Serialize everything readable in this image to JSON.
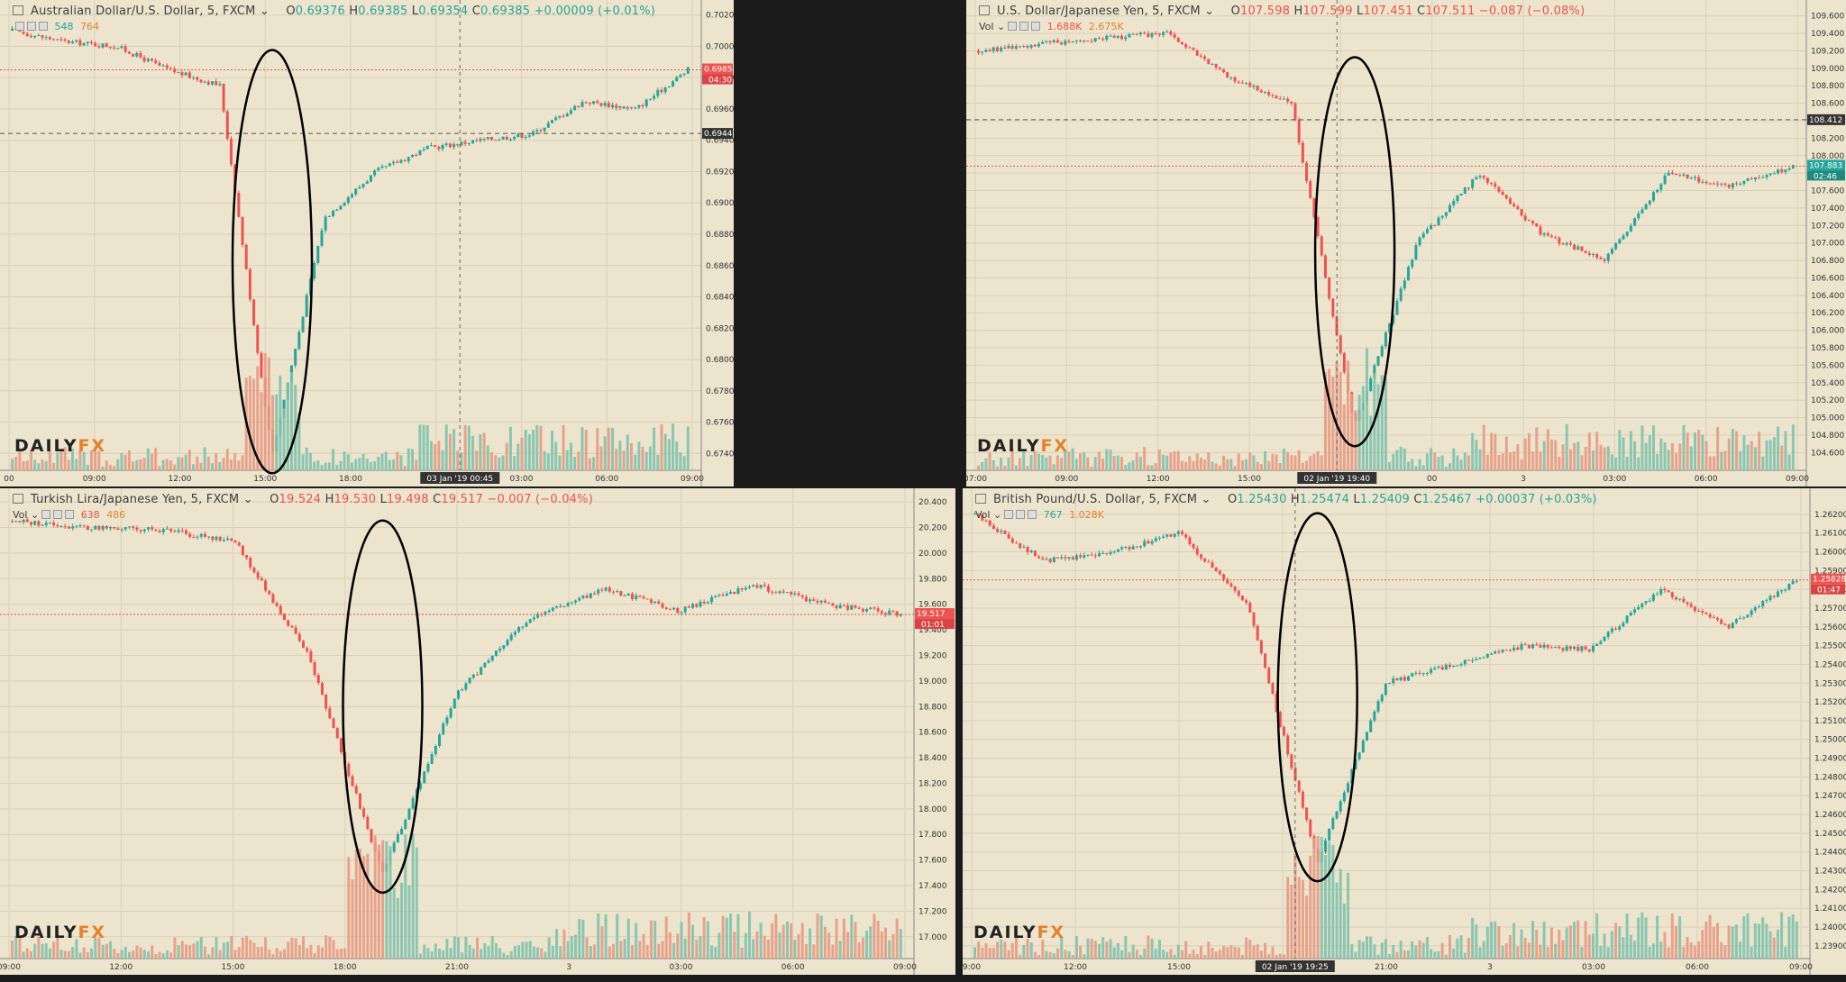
{
  "colors": {
    "up": "#26a69a",
    "down": "#ef5350",
    "vol_up": "#7fc2ae",
    "vol_down": "#e89a84",
    "bg": "#ece4cc",
    "grid": "#d8d0b8",
    "ellipse": "#000000"
  },
  "logo": {
    "main": "DAILY",
    "accent": "FX"
  },
  "panels": [
    {
      "header": {
        "title": "Australian Dollar/U.S. Dollar, 5, FXCM",
        "o_label": "O",
        "o": "0.69376",
        "h_label": "H",
        "h": "0.69385",
        "l_label": "L",
        "l": "0.69354",
        "c_label": "C",
        "c": "0.69385",
        "change": "+0.00009 (+0.01%)",
        "change_color": "#26a69a"
      },
      "vol": {
        "label": "",
        "v1": "548",
        "v2": "764"
      },
      "y_ticks": [
        "0.70200",
        "0.70000",
        "0.69800",
        "0.69600",
        "0.69400",
        "0.69200",
        "0.69000",
        "0.68800",
        "0.68600",
        "0.68400",
        "0.68200",
        "0.68000",
        "0.67800",
        "0.67600",
        "0.67400"
      ],
      "x_ticks": [
        "00",
        "09:00",
        "12:00",
        "15:00",
        "18:00",
        "21:00",
        "03:00",
        "06:00",
        "09:00"
      ],
      "price_badge": {
        "value": "0.69858",
        "time": "04:30"
      },
      "cross_badge": {
        "value": "0.69444"
      },
      "x_cursor_label": "03 Jan '19    00:45"
    },
    {
      "header": {
        "title": "U.S. Dollar/Japanese Yen, 5, FXCM",
        "o_label": "O",
        "o": "107.598",
        "h_label": "H",
        "h": "107.599",
        "l_label": "L",
        "l": "107.451",
        "c_label": "C",
        "c": "107.511",
        "change": "−0.087 (−0.08%)",
        "change_color": "#ef5350"
      },
      "vol": {
        "label": "Vol",
        "v1": "1.688K",
        "v2": "2.675K"
      },
      "y_ticks": [
        "109.600",
        "109.400",
        "109.200",
        "109.000",
        "108.800",
        "108.600",
        "108.400",
        "108.200",
        "108.000",
        "107.800",
        "107.600",
        "107.400",
        "107.200",
        "107.000",
        "106.800",
        "106.600",
        "106.400",
        "106.200",
        "106.000",
        "105.800",
        "105.600",
        "105.400",
        "105.200",
        "105.000",
        "104.800",
        "104.600"
      ],
      "x_ticks": [
        "07:00",
        "09:00",
        "12:00",
        "15:00",
        "18:00",
        "00",
        "3",
        "03:00",
        "06:00",
        "09:00"
      ],
      "price_badge": {
        "value": "107.883",
        "time": "02:46"
      },
      "cross_badge": {
        "value": "108.412"
      },
      "x_cursor_label": "02 Jan '19    19:40"
    },
    {
      "header": {
        "title": "Turkish Lira/Japanese Yen, 5, FXCM",
        "o_label": "O",
        "o": "19.524",
        "h_label": "H",
        "h": "19.530",
        "l_label": "L",
        "l": "19.498",
        "c_label": "C",
        "c": "19.517",
        "change": "−0.007 (−0.04%)",
        "change_color": "#ef5350"
      },
      "vol": {
        "label": "Vol",
        "v1": "638",
        "v2": "486"
      },
      "y_ticks": [
        "20.400",
        "20.200",
        "20.000",
        "19.800",
        "19.600",
        "19.400",
        "19.200",
        "19.000",
        "18.800",
        "18.600",
        "18.400",
        "18.200",
        "18.000",
        "17.800",
        "17.600",
        "17.400",
        "17.200",
        "17.000"
      ],
      "x_ticks": [
        "09:00",
        "12:00",
        "15:00",
        "18:00",
        "21:00",
        "3",
        "03:00",
        "06:00",
        "09:00"
      ],
      "price_badge": {
        "value": "19.517",
        "time": "01:01"
      },
      "cross_badge": null,
      "x_cursor_label": ""
    },
    {
      "header": {
        "title": "British Pound/U.S. Dollar, 5, FXCM",
        "o_label": "O",
        "o": "1.25430",
        "h_label": "H",
        "h": "1.25474",
        "l_label": "L",
        "l": "1.25409",
        "c_label": "C",
        "c": "1.25467",
        "change": "+0.00037 (+0.03%)",
        "change_color": "#26a69a"
      },
      "vol": {
        "label": "Vol",
        "v1": "767",
        "v2": "1.028K"
      },
      "y_ticks": [
        "1.26200",
        "1.26100",
        "1.26000",
        "1.25900",
        "1.25800",
        "1.25700",
        "1.25600",
        "1.25500",
        "1.25400",
        "1.25300",
        "1.25200",
        "1.25100",
        "1.25000",
        "1.24900",
        "1.24800",
        "1.24700",
        "1.24600",
        "1.24500",
        "1.24400",
        "1.24300",
        "1.24200",
        "1.24100",
        "1.24000",
        "1.23900"
      ],
      "x_ticks": [
        "9:00",
        "12:00",
        "15:00",
        "18:00",
        "21:00",
        "3",
        "03:00",
        "06:00",
        "09:00"
      ],
      "price_badge": {
        "value": "1.25828",
        "time": "01:47"
      },
      "cross_badge": null,
      "x_cursor_label": "02 Jan '19    19:25"
    }
  ],
  "chart_data": [
    {
      "type": "line",
      "title": "Australian Dollar/U.S. Dollar, 5, FXCM",
      "x": [
        "09:00",
        "12:00",
        "15:00",
        "17:20",
        "17:45",
        "18:00",
        "18:15",
        "18:40",
        "19:00",
        "21:00",
        "00:00",
        "03:00",
        "06:00",
        "09:00"
      ],
      "series": [
        {
          "values": [
            0.701,
            0.7003,
            0.7,
            0.6985,
            0.6975,
            0.674,
            0.689,
            0.692,
            0.6935,
            0.694,
            0.6944,
            0.6965,
            0.696,
            0.6985
          ]
        }
      ],
      "ylim": [
        0.6735,
        0.7025
      ],
      "annotations": [
        "ellipse around 17:45–18:40 flash crash"
      ]
    },
    {
      "type": "line",
      "title": "U.S. Dollar/Japanese Yen, 5, FXCM",
      "x": [
        "07:00",
        "09:00",
        "12:00",
        "15:00",
        "17:00",
        "17:45",
        "18:00",
        "18:20",
        "19:00",
        "21:00",
        "00:00",
        "03:00",
        "06:00",
        "09:00"
      ],
      "series": [
        {
          "values": [
            109.2,
            109.28,
            109.35,
            109.4,
            108.9,
            108.6,
            104.9,
            107.0,
            107.8,
            107.1,
            106.8,
            107.8,
            107.65,
            107.88
          ]
        }
      ],
      "ylim": [
        104.5,
        109.7
      ],
      "annotations": [
        "ellipse around 17:30–18:45 flash crash"
      ]
    },
    {
      "type": "line",
      "title": "Turkish Lira/Japanese Yen, 5, FXCM",
      "x": [
        "09:00",
        "12:00",
        "15:00",
        "16:45",
        "17:20",
        "17:40",
        "18:00",
        "18:30",
        "21:00",
        "00:00",
        "03:00",
        "06:00",
        "09:00"
      ],
      "series": [
        {
          "values": [
            20.25,
            20.2,
            20.18,
            20.1,
            19.2,
            17.5,
            18.9,
            19.5,
            19.72,
            19.55,
            19.75,
            19.6,
            19.52
          ]
        }
      ],
      "ylim": [
        16.9,
        20.45
      ],
      "annotations": [
        "ellipse around 16:45–18:30 flash crash"
      ]
    },
    {
      "type": "line",
      "title": "British Pound/U.S. Dollar, 5, FXCM",
      "x": [
        "09:00",
        "12:00",
        "15:00",
        "17:00",
        "17:30",
        "18:00",
        "18:30",
        "19:00",
        "21:00",
        "00:00",
        "03:00",
        "06:00",
        "09:00"
      ],
      "series": [
        {
          "values": [
            1.262,
            1.2595,
            1.26,
            1.261,
            1.257,
            1.2435,
            1.253,
            1.254,
            1.255,
            1.2548,
            1.258,
            1.256,
            1.2585
          ]
        }
      ],
      "ylim": [
        1.2388,
        1.263
      ],
      "annotations": [
        "ellipse around 17:00–18:45 flash crash"
      ]
    }
  ]
}
